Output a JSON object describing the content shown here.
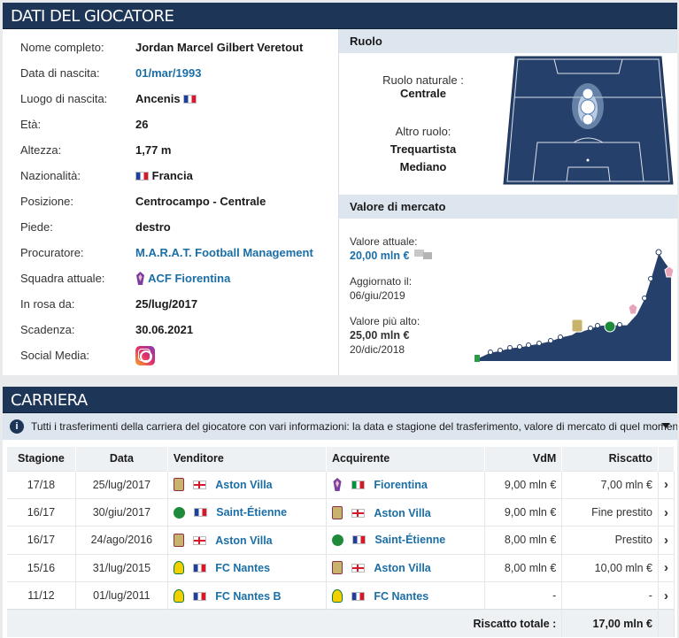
{
  "player_box": {
    "title": "DATI DEL GIOCATORE",
    "rows": [
      {
        "label": "Nome completo:",
        "value": "Jordan Marcel Gilbert Veretout"
      },
      {
        "label": "Data di nascita:",
        "value": "01/mar/1993"
      },
      {
        "label": "Luogo di nascita:",
        "value": "Ancenis"
      },
      {
        "label": "Età:",
        "value": "26"
      },
      {
        "label": "Altezza:",
        "value": "1,77 m"
      },
      {
        "label": "Nazionalità:",
        "value": "Francia"
      },
      {
        "label": "Posizione:",
        "value": "Centrocampo - Centrale"
      },
      {
        "label": "Piede:",
        "value": "destro"
      },
      {
        "label": "Procuratore:",
        "value": "M.A.R.A.T. Football Management"
      },
      {
        "label": "Squadra attuale:",
        "value": "ACF Fiorentina"
      },
      {
        "label": "In rosa da:",
        "value": "25/lug/2017"
      },
      {
        "label": "Scadenza:",
        "value": "30.06.2021"
      },
      {
        "label": "Social Media:",
        "value": ""
      }
    ],
    "social_icon": "instagram-icon",
    "role": {
      "heading": "Ruolo",
      "natural_label": "Ruolo naturale :",
      "natural_value": "Centrale",
      "other_label": "Altro ruolo:",
      "other_values": [
        "Trequartista",
        "Mediano"
      ]
    },
    "market": {
      "heading": "Valore di mercato",
      "current_label": "Valore attuale:",
      "current_value": "20,00 mln €",
      "updated_label": "Aggiornato il:",
      "updated_value": "06/giu/2019",
      "highest_label": "Valore più alto:",
      "highest_value": "25,00 mln €",
      "highest_date": "20/dic/2018"
    }
  },
  "career_box": {
    "title": "CARRIERA",
    "notice": "Tutti i trasferimenti della carriera del giocatore con vari informazioni: la data e stagione del trasferimento, valore di mercato di quel momento...",
    "headers": {
      "season": "Stagione",
      "date": "Data",
      "seller": "Venditore",
      "buyer": "Acquirente",
      "mv": "VdM",
      "fee": "Riscatto"
    },
    "transfers": [
      {
        "season": "17/18",
        "date": "25/lug/2017",
        "from": "Aston Villa",
        "to": "Fiorentina",
        "mv": "9,00 mln €",
        "fee": "7,00 mln €"
      },
      {
        "season": "16/17",
        "date": "30/giu/2017",
        "from": "Saint-Étienne",
        "to": "Aston Villa",
        "mv": "9,00 mln €",
        "fee": "Fine prestito"
      },
      {
        "season": "16/17",
        "date": "24/ago/2016",
        "from": "Aston Villa",
        "to": "Saint-Étienne",
        "mv": "8,00 mln €",
        "fee": "Prestito"
      },
      {
        "season": "15/16",
        "date": "31/lug/2015",
        "from": "FC Nantes",
        "to": "Aston Villa",
        "mv": "8,00 mln €",
        "fee": "10,00 mln €"
      },
      {
        "season": "11/12",
        "date": "01/lug/2011",
        "from": "FC Nantes B",
        "to": "FC Nantes",
        "mv": "-",
        "fee": "-"
      }
    ],
    "total_label": "Riscatto totale :",
    "total_value": "17,00 mln €"
  },
  "colors": {
    "header": "#1d3557",
    "subheader": "#dde6ef",
    "link": "#1b6ea6",
    "chart": "#25406b"
  }
}
